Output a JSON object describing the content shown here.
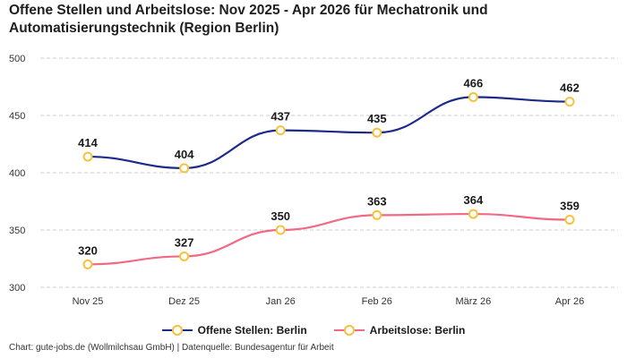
{
  "title": "Offene Stellen und Arbeitslose: Nov 2025 - Apr 2026 für Mechatronik und Automatisierungstechnik (Region Berlin)",
  "footer": "Chart: gute-jobs.de (Wollmilchsau GmbH) | Datenquelle: Bundesagentur für Arbeit",
  "colors": {
    "series1": "#1c2a8a",
    "series2": "#f06a84",
    "marker": "#f5c33b"
  },
  "chart_data": {
    "type": "line",
    "title": "Offene Stellen und Arbeitslose: Nov 2025 - Apr 2026 für Mechatronik und Automatisierungstechnik (Region Berlin)",
    "categories": [
      "Nov 25",
      "Dez 25",
      "Jan 26",
      "Feb 26",
      "März 26",
      "Apr 26"
    ],
    "series": [
      {
        "name": "Offene Stellen: Berlin",
        "values": [
          414,
          404,
          437,
          435,
          466,
          462
        ]
      },
      {
        "name": "Arbeitslose: Berlin",
        "values": [
          320,
          327,
          350,
          363,
          364,
          359
        ]
      }
    ],
    "yticks": [
      "300",
      "350",
      "400",
      "450",
      "500"
    ],
    "ylim": [
      300,
      500
    ],
    "grid": true,
    "legend": "bottom"
  }
}
